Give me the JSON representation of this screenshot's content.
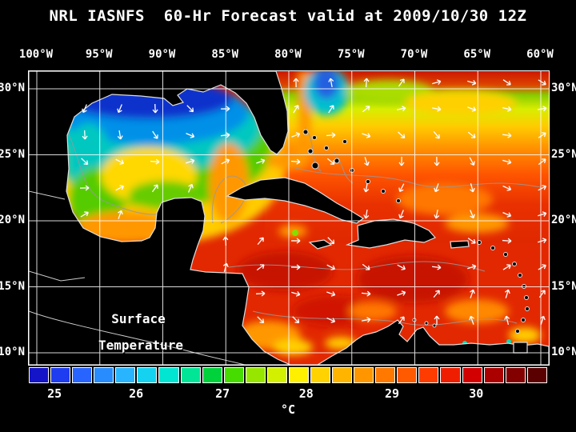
{
  "title": "NRL IASNFS  60-Hr Forecast valid at 2009/10/30 12Z",
  "axes": {
    "lon_labels": [
      "100°W",
      "95°W",
      "90°W",
      "85°W",
      "80°W",
      "75°W",
      "70°W",
      "65°W",
      "60°W"
    ],
    "lat_labels_left": [
      "30°N",
      "25°N",
      "20°N",
      "15°N",
      "10°N"
    ],
    "lat_labels_right": [
      "30°N",
      "25°N",
      "20°N",
      "15°N",
      "10°N"
    ]
  },
  "map": {
    "overlay_labels": [
      "Surface",
      "Temperature"
    ]
  },
  "colorbar": {
    "tick_labels": [
      "25",
      "26",
      "27",
      "28",
      "29",
      "30"
    ],
    "tick_positions_pct": [
      5.1,
      20.8,
      37.4,
      53.5,
      70.0,
      86.2
    ],
    "unit": "°C",
    "segments": [
      "#1414c8",
      "#1e3cf0",
      "#2864ff",
      "#288cff",
      "#28b4ff",
      "#14d2f0",
      "#00e6d2",
      "#00e696",
      "#00d23c",
      "#46dc00",
      "#96e600",
      "#d2f000",
      "#fff000",
      "#ffd200",
      "#ffb400",
      "#ff9600",
      "#ff7800",
      "#ff5a00",
      "#ff3c00",
      "#f01e00",
      "#d20000",
      "#aa0000",
      "#820000",
      "#5a0000"
    ]
  },
  "colors": {
    "background": "#000000",
    "text": "#ffffff",
    "grid": "#ffffff",
    "coastline": "#dddddd",
    "contour": "#999999",
    "arrow": "#ffffff"
  }
}
